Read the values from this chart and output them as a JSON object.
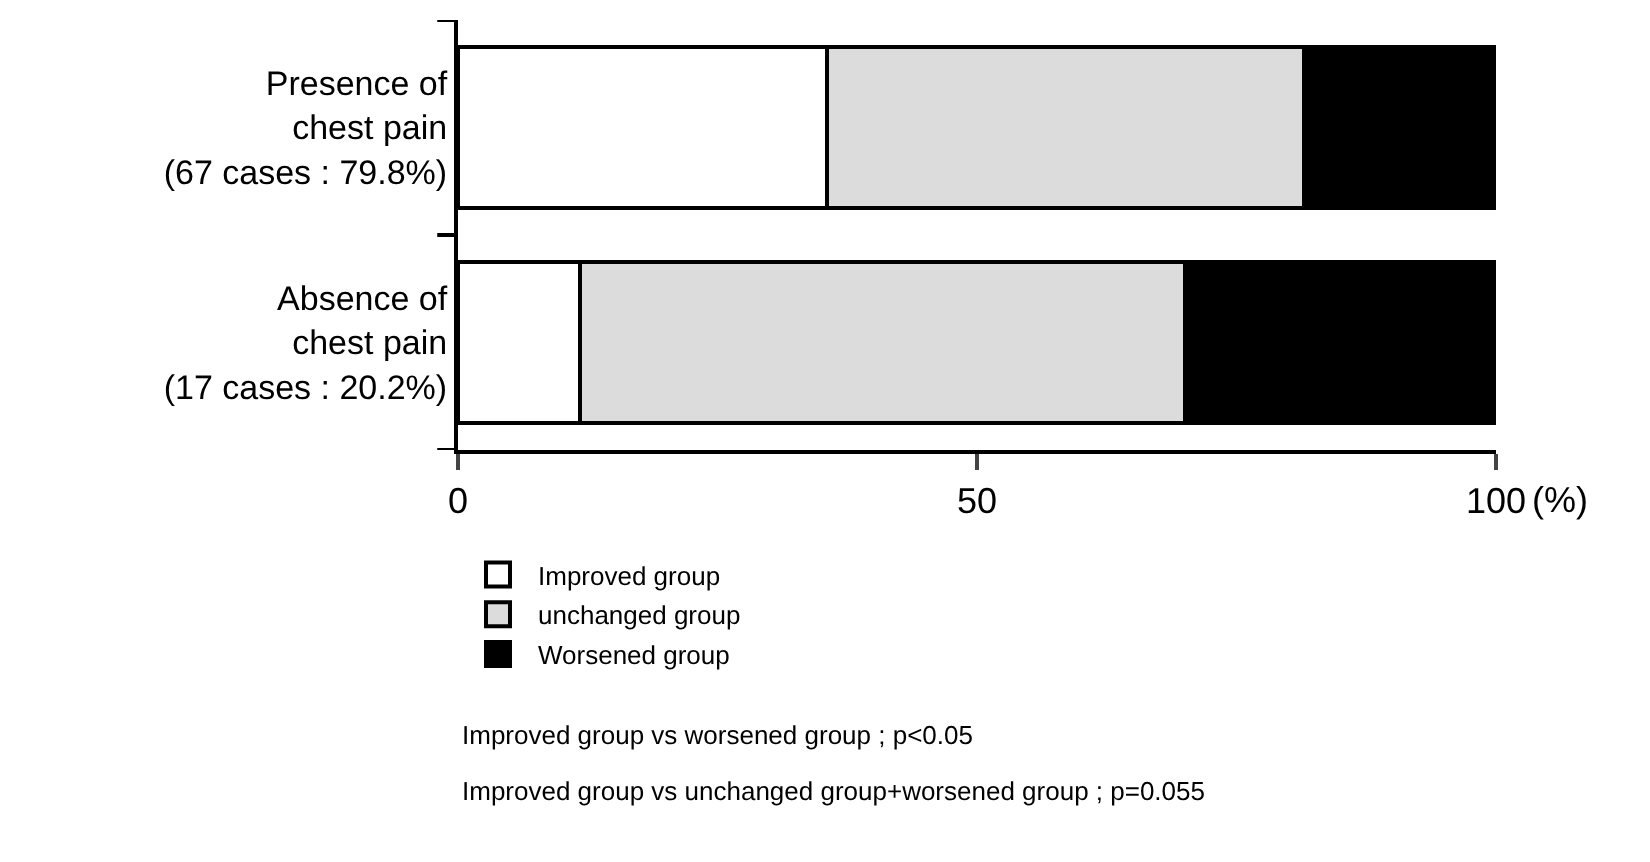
{
  "chart_data": {
    "type": "bar",
    "orientation": "horizontal",
    "stacked": true,
    "categories": [
      "Presence of\nchest pain\n(67 cases : 79.8%)",
      "Absence of\nchest pain\n(17 cases : 20.2%)"
    ],
    "series": [
      {
        "name": "Improved group",
        "color": "#ffffff",
        "values": [
          35.5,
          11.8
        ]
      },
      {
        "name": "unchanged group",
        "color": "#dcdcdc",
        "values": [
          46,
          58.2
        ]
      },
      {
        "name": "Worsened group",
        "color": "#000000",
        "values": [
          18.5,
          30
        ]
      }
    ],
    "xlim": [
      0,
      100
    ],
    "xticks": [
      0,
      50,
      100
    ],
    "xlabel": "(%)",
    "legend": "bottom",
    "annotations": [
      "Improved group vs worsened group ; p<0.05",
      "Improved group vs unchanged group+worsened group ; p=0.055"
    ]
  }
}
